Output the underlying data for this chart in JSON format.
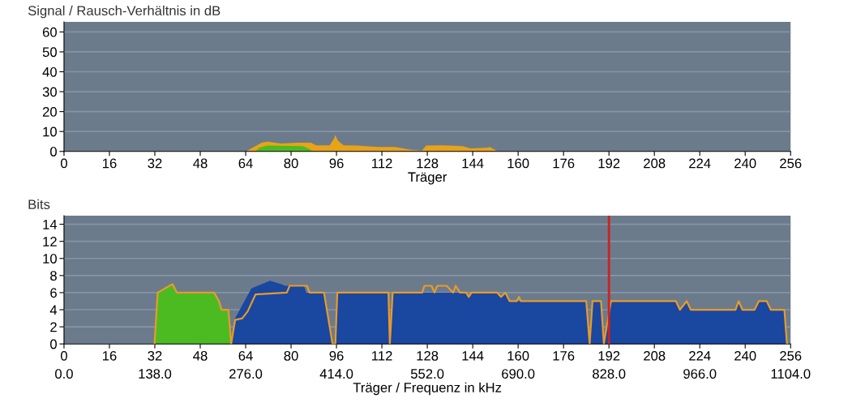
{
  "chart_data": [
    {
      "type": "area",
      "ylabel": "Signal / Rausch-Verhältnis in dB",
      "xlabel": "Träger",
      "xlim": [
        0,
        256
      ],
      "xticks": [
        0,
        16,
        32,
        48,
        64,
        80,
        96,
        112,
        128,
        144,
        160,
        176,
        192,
        208,
        224,
        240,
        256
      ],
      "ylim": [
        0,
        65
      ],
      "yticks": [
        0,
        10,
        20,
        30,
        40,
        50,
        60
      ],
      "grid": "y",
      "series": [
        {
          "color": "#e8a317",
          "x": [
            64.1,
            66.9,
            69.8,
            71.7,
            76.5,
            82.2,
            87,
            88.9,
            93.6,
            95.1,
            95.6,
            96.5,
            98.5,
            103.2,
            110.9,
            116.6,
            122.3,
            126.1,
            127.6,
            133.8,
            140.4,
            143.3,
            149,
            150,
            152.9
          ],
          "values": [
            0,
            2.2,
            4.5,
            4.9,
            4,
            4.4,
            4.4,
            3.1,
            3.1,
            6.3,
            8.2,
            5.4,
            3.1,
            2.9,
            2.2,
            2.2,
            0.8,
            0.4,
            2.9,
            3.1,
            2.6,
            1.5,
            1.8,
            2.2,
            0
          ]
        },
        {
          "color": "#4cbb22",
          "x": [
            67.4,
            68.8,
            71.7,
            84.1,
            86,
            87.9
          ],
          "values": [
            0,
            1.8,
            2.9,
            2.6,
            1.5,
            0
          ]
        }
      ]
    },
    {
      "type": "area",
      "ylabel": "Bits",
      "x2label": "Träger / Frequenz in kHz",
      "xlim": [
        0,
        256
      ],
      "xticks": [
        0,
        16,
        32,
        48,
        64,
        80,
        96,
        112,
        128,
        144,
        160,
        176,
        192,
        208,
        224,
        240,
        256
      ],
      "x2lim": [
        0,
        1104
      ],
      "x2ticks": [
        {
          "value": 0,
          "label": "0.0"
        },
        {
          "value": 138,
          "label": "138.0"
        },
        {
          "value": 276,
          "label": "276.0"
        },
        {
          "value": 414,
          "label": "414.0"
        },
        {
          "value": 552,
          "label": "552.0"
        },
        {
          "value": 690,
          "label": "690.0"
        },
        {
          "value": 828,
          "label": "828.0"
        },
        {
          "value": 966,
          "label": "966.0"
        },
        {
          "value": 1104,
          "label": "1104.0"
        }
      ],
      "ylim": [
        0,
        15
      ],
      "yticks": [
        0,
        2,
        4,
        6,
        8,
        10,
        12,
        14
      ],
      "grid": "y",
      "ref_lines": [
        {
          "axis": "x",
          "value": 192,
          "color": "#d02020"
        }
      ],
      "series": [
        {
          "color": "#4cbb22",
          "x": [
            31.9,
            33,
            38.2,
            39.8,
            52.9,
            54.6,
            55.5,
            57.9,
            58.9
          ],
          "values": [
            0,
            6,
            7,
            6,
            6,
            5,
            4,
            4,
            0
          ]
        },
        {
          "color": "#1a47a0",
          "x": [
            59,
            60.3,
            66,
            72.6,
            76.5,
            78,
            84.5,
            85.4,
            91.6,
            94.6,
            95.6,
            96.3,
            114.3,
            114.8,
            115.8,
            141.7,
            142.6,
            143.6,
            152.6,
            154,
            155.5,
            157,
            184,
            185.2,
            186.2,
            189.2,
            190.2,
            192.7,
            215.6,
            217,
            219.4,
            220.8,
            236.6,
            237.7,
            239,
            243.3,
            244.8,
            247.6,
            249,
            253.8,
            254.7
          ],
          "values": [
            0,
            3,
            6.5,
            7.4,
            7,
            6.8,
            6.8,
            6,
            6,
            0,
            0,
            6,
            6,
            0,
            6,
            6,
            5.5,
            6,
            6,
            5.5,
            6,
            5,
            5,
            0,
            5,
            5,
            0,
            5,
            5,
            4,
            5,
            4,
            4,
            5,
            4,
            4,
            5,
            5,
            4,
            4,
            0
          ]
        },
        {
          "type": "line",
          "color": "#e89a2a",
          "x": [
            31.9,
            33,
            38.2,
            39.8,
            52.9,
            54.6,
            55.5,
            57.9,
            58.9,
            60.3,
            62.8,
            64.7,
            67.5,
            78.5,
            79.5,
            85.6,
            86.5,
            91.6,
            94.6,
            95.6,
            96.3,
            114.3,
            114.8,
            115.8,
            126.2,
            127,
            129.5,
            130.5,
            131.5,
            134.8,
            137.1,
            138,
            139.5,
            141.7,
            142.6,
            143.6,
            152.6,
            154,
            155.5,
            157,
            159.5,
            160.3,
            161,
            184,
            185.2,
            186.2,
            189.2,
            190.2,
            192.7,
            215.6,
            217,
            219.4,
            220.8,
            236.6,
            237.7,
            239,
            243.3,
            244.8,
            247.6,
            249,
            253.8,
            254.7
          ],
          "values": [
            0,
            6,
            7,
            6,
            6,
            5,
            4,
            4,
            0,
            2.8,
            3,
            3.8,
            5.8,
            6,
            6.8,
            6.8,
            6,
            6,
            0,
            0,
            6,
            6,
            0,
            6,
            6,
            6.8,
            6.8,
            6,
            6.8,
            6.8,
            6,
            6.8,
            6,
            6,
            5.5,
            6,
            6,
            5.5,
            6,
            5,
            5,
            5.5,
            5,
            5,
            0,
            5,
            5,
            0,
            5,
            5,
            4,
            5,
            4,
            4,
            5,
            4,
            4,
            5,
            5,
            4,
            4,
            0
          ]
        }
      ]
    }
  ]
}
